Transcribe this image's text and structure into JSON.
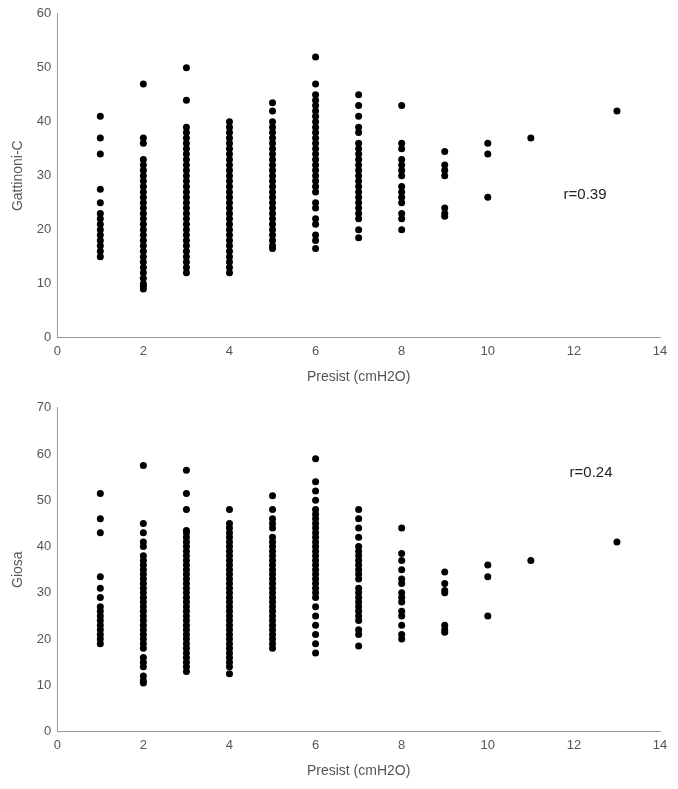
{
  "chart_data": [
    {
      "type": "scatter",
      "x_label": "Presist (cmH2O)",
      "y_label": "Gattinoni-C",
      "annotation": "r=0.39",
      "color": "#000000",
      "marker": "circle",
      "grid": false,
      "xlim": [
        0,
        14
      ],
      "xticks": [
        0,
        2,
        4,
        6,
        8,
        10,
        12,
        14
      ],
      "ylim": [
        0,
        60
      ],
      "yticks": [
        0,
        10,
        20,
        30,
        40,
        50,
        60
      ],
      "x": [
        1,
        2,
        3,
        4,
        5,
        6,
        7,
        8,
        9,
        10,
        11,
        13
      ],
      "values": [
        [
          41,
          37,
          34,
          27.5,
          25,
          23,
          22,
          21,
          20,
          19,
          18,
          17,
          16,
          15
        ],
        [
          47,
          37,
          36,
          33,
          32,
          31,
          30,
          29,
          28,
          27,
          26,
          25,
          24,
          23,
          22,
          21,
          20,
          19,
          18,
          17,
          16,
          15,
          14,
          13,
          12,
          11,
          10,
          9.5,
          9
        ],
        [
          50,
          44,
          39,
          38,
          37,
          36,
          35,
          34,
          33,
          32,
          31,
          30,
          29,
          28,
          27,
          26,
          25,
          24,
          23,
          22,
          21,
          20,
          19,
          18,
          17,
          16,
          15,
          14,
          13,
          12
        ],
        [
          40,
          39,
          38,
          37,
          36,
          35,
          34,
          33,
          32,
          31,
          30,
          29,
          28,
          27,
          26,
          25,
          24,
          23,
          22,
          21,
          20,
          19,
          18,
          17,
          16,
          15,
          14,
          13,
          12
        ],
        [
          43.5,
          42,
          40,
          39,
          38,
          37,
          36,
          35,
          34,
          33,
          32,
          31,
          30,
          29,
          28,
          27,
          26,
          25,
          24,
          23,
          22,
          21,
          20,
          19,
          18,
          17,
          16.5
        ],
        [
          52,
          47,
          45,
          44,
          43,
          42,
          41,
          40,
          39,
          38,
          37,
          36,
          35,
          34,
          33,
          32,
          31,
          30,
          29,
          28,
          27,
          25,
          24,
          22,
          21,
          19,
          18,
          16.5
        ],
        [
          45,
          43,
          41,
          39,
          38,
          36,
          35,
          34,
          33,
          32,
          31,
          30,
          29,
          28,
          27,
          26,
          25,
          24,
          23,
          22,
          20,
          18.5
        ],
        [
          43,
          36,
          35,
          33,
          32,
          31,
          30,
          28,
          27,
          26,
          25,
          23,
          22,
          20
        ],
        [
          34.5,
          32,
          31,
          30,
          24,
          23,
          22.5
        ],
        [
          36,
          34,
          26
        ],
        [
          37
        ],
        [
          42
        ]
      ]
    },
    {
      "type": "scatter",
      "x_label": "Presist (cmH2O)",
      "y_label": "Giosa",
      "annotation": "r=0.24",
      "color": "#000000",
      "marker": "circle",
      "grid": false,
      "xlim": [
        0,
        14
      ],
      "xticks": [
        0,
        2,
        4,
        6,
        8,
        10,
        12,
        14
      ],
      "ylim": [
        0,
        70
      ],
      "yticks": [
        0,
        10,
        20,
        30,
        40,
        50,
        60,
        70
      ],
      "x": [
        1,
        2,
        3,
        4,
        5,
        6,
        7,
        8,
        9,
        10,
        11,
        13
      ],
      "values": [
        [
          51.5,
          46,
          43,
          33.5,
          31,
          29,
          27,
          26,
          25,
          24,
          23,
          22,
          21,
          20,
          19
        ],
        [
          57.5,
          45,
          43,
          41,
          40,
          38,
          37,
          36,
          35,
          34,
          33,
          32,
          31,
          30,
          29,
          28,
          27,
          26,
          25,
          24,
          23,
          22,
          21,
          20,
          19,
          18,
          16,
          15,
          14,
          12,
          11,
          10.5
        ],
        [
          56.5,
          51.5,
          48,
          43.5,
          43,
          42,
          41,
          40,
          39,
          38,
          37,
          36,
          35,
          34,
          33,
          32,
          31,
          30,
          29,
          28,
          27,
          26,
          25,
          24,
          23,
          22,
          21,
          20,
          19,
          18,
          17,
          16,
          15,
          14,
          13
        ],
        [
          48,
          45,
          44,
          43,
          42,
          41,
          40,
          39,
          38,
          37,
          36,
          35,
          34,
          33,
          32,
          31,
          30,
          29,
          28,
          27,
          26,
          25,
          24,
          23,
          22,
          21,
          20,
          19,
          18,
          17,
          16,
          15,
          14,
          12.5
        ],
        [
          51,
          48,
          46,
          45,
          44,
          42,
          41,
          40,
          39,
          38,
          37,
          36,
          35,
          34,
          33,
          32,
          31,
          30,
          29,
          28,
          27,
          26,
          25,
          24,
          23,
          22,
          21,
          20,
          19,
          18
        ],
        [
          59,
          54,
          52,
          50,
          48,
          47,
          46,
          45,
          44,
          43,
          42,
          41,
          40,
          39,
          38,
          37,
          36,
          35,
          34,
          33,
          32,
          31,
          30,
          29,
          27,
          25,
          23,
          21,
          19,
          17
        ],
        [
          48,
          46,
          44,
          42,
          40,
          39,
          38,
          37,
          36,
          35,
          34,
          33,
          31,
          30,
          29,
          28,
          27,
          26,
          25,
          24,
          22,
          21,
          18.5
        ],
        [
          44,
          38.5,
          37,
          35,
          33,
          32,
          30,
          29,
          28,
          26,
          25,
          23,
          21,
          20
        ],
        [
          34.5,
          32,
          30.5,
          30,
          23,
          22,
          21.5
        ],
        [
          36,
          33.5,
          25
        ],
        [
          37
        ],
        [
          41
        ]
      ]
    }
  ]
}
